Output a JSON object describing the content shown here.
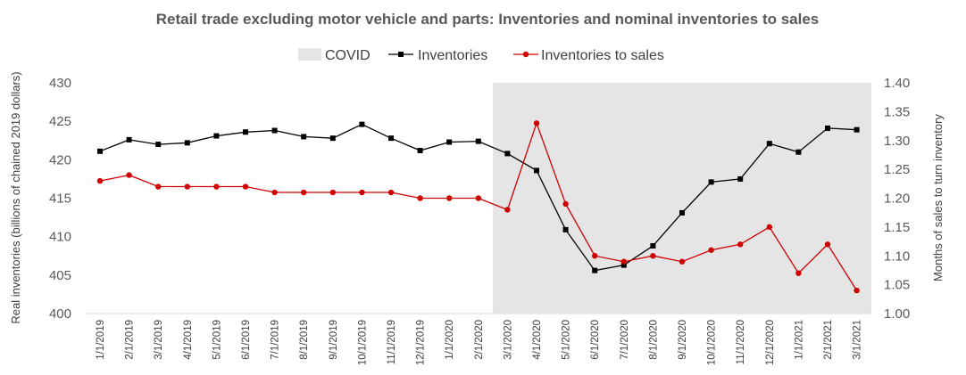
{
  "chart_data": {
    "type": "line",
    "title": "Retail trade excluding motor vehicle and parts: Inventories and nominal inventories to sales",
    "ylabel_left": "Real inventories (billions of chained 2019 dollars)",
    "ylabel_right": "Months of sales to turn inventory",
    "ylim_left": [
      400,
      430
    ],
    "ylim_right": [
      1.0,
      1.4
    ],
    "yticks_left": [
      "400",
      "405",
      "410",
      "415",
      "420",
      "425",
      "430"
    ],
    "yticks_right": [
      "1.00",
      "1.05",
      "1.10",
      "1.15",
      "1.20",
      "1.25",
      "1.30",
      "1.35",
      "1.40"
    ],
    "grid": false,
    "legend_position": "top-center",
    "categories": [
      "1/1/2019",
      "2/1/2019",
      "3/1/2019",
      "4/1/2019",
      "5/1/2019",
      "6/1/2019",
      "7/1/2019",
      "8/1/2019",
      "9/1/2019",
      "10/1/2019",
      "11/1/2019",
      "12/1/2019",
      "1/1/2020",
      "2/1/2020",
      "3/1/2020",
      "4/1/2020",
      "5/1/2020",
      "6/1/2020",
      "7/1/2020",
      "8/1/2020",
      "9/1/2020",
      "10/1/2020",
      "11/1/2020",
      "12/1/2020",
      "1/1/2021",
      "2/1/2021",
      "3/1/2021"
    ],
    "shaded_region": {
      "name": "COVID",
      "start": "3/1/2020",
      "end": "3/1/2021",
      "color": "#e5e5e5"
    },
    "series": [
      {
        "name": "Inventories",
        "axis": "left",
        "color": "#000000",
        "marker": "square",
        "values": [
          421.1,
          422.6,
          422.0,
          422.2,
          423.1,
          423.6,
          423.8,
          423.0,
          422.8,
          424.6,
          422.8,
          421.2,
          422.3,
          422.4,
          420.8,
          418.6,
          410.9,
          405.6,
          406.3,
          408.8,
          413.1,
          417.1,
          417.5,
          422.1,
          421.0,
          424.1,
          423.9
        ]
      },
      {
        "name": "Inventories to sales",
        "axis": "right",
        "color": "#d00000",
        "marker": "circle",
        "values": [
          1.23,
          1.24,
          1.22,
          1.22,
          1.22,
          1.22,
          1.21,
          1.21,
          1.21,
          1.21,
          1.21,
          1.2,
          1.2,
          1.2,
          1.18,
          1.33,
          1.19,
          1.1,
          1.09,
          1.1,
          1.09,
          1.11,
          1.12,
          1.15,
          1.07,
          1.12,
          1.04
        ]
      }
    ]
  }
}
